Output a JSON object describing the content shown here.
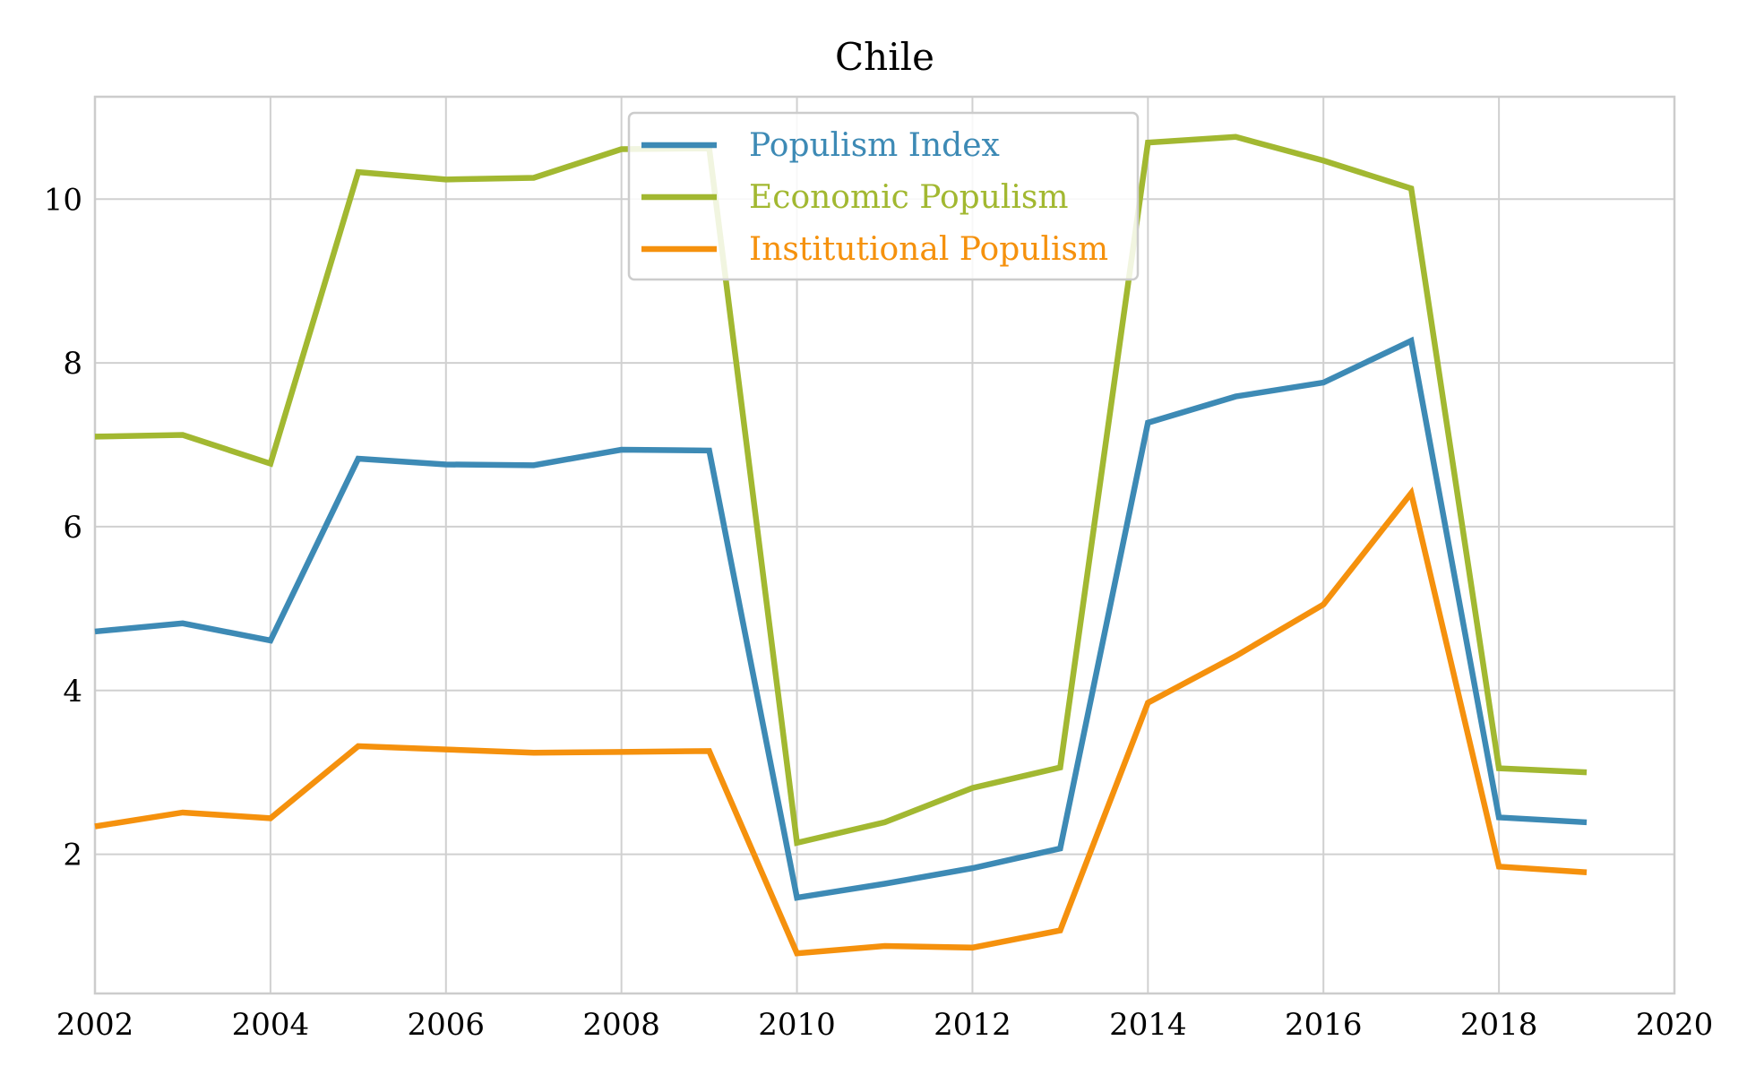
{
  "chart_data": {
    "type": "line",
    "title": "Chile",
    "xlabel": "",
    "ylabel": "",
    "xlim": [
      2002,
      2020
    ],
    "ylim": [
      0.3,
      11.25
    ],
    "x_ticks": [
      2002,
      2004,
      2006,
      2008,
      2010,
      2012,
      2014,
      2016,
      2018,
      2020
    ],
    "y_ticks": [
      2,
      4,
      6,
      8,
      10
    ],
    "grid": true,
    "legend_position": "top-center",
    "x": [
      2002,
      2003,
      2004,
      2005,
      2006,
      2007,
      2008,
      2009,
      2010,
      2011,
      2012,
      2013,
      2014,
      2015,
      2016,
      2017,
      2018,
      2019
    ],
    "series": [
      {
        "name": "Populism Index",
        "color": "#3d8ab5",
        "values": [
          4.72,
          4.82,
          4.61,
          6.83,
          6.76,
          6.75,
          6.94,
          6.93,
          1.47,
          1.64,
          1.83,
          2.07,
          7.27,
          7.59,
          7.76,
          8.27,
          2.45,
          2.39
        ]
      },
      {
        "name": "Economic Populism",
        "color": "#a2b831",
        "values": [
          7.1,
          7.12,
          6.77,
          10.33,
          10.24,
          10.26,
          10.61,
          10.62,
          2.14,
          2.39,
          2.81,
          3.06,
          10.69,
          10.76,
          10.47,
          10.13,
          3.05,
          3.0
        ]
      },
      {
        "name": "Institutional Populism",
        "color": "#f5910d",
        "values": [
          2.34,
          2.51,
          2.44,
          3.32,
          3.28,
          3.24,
          3.25,
          3.26,
          0.79,
          0.88,
          0.86,
          1.07,
          3.85,
          4.42,
          5.05,
          6.41,
          1.85,
          1.78
        ]
      }
    ]
  }
}
